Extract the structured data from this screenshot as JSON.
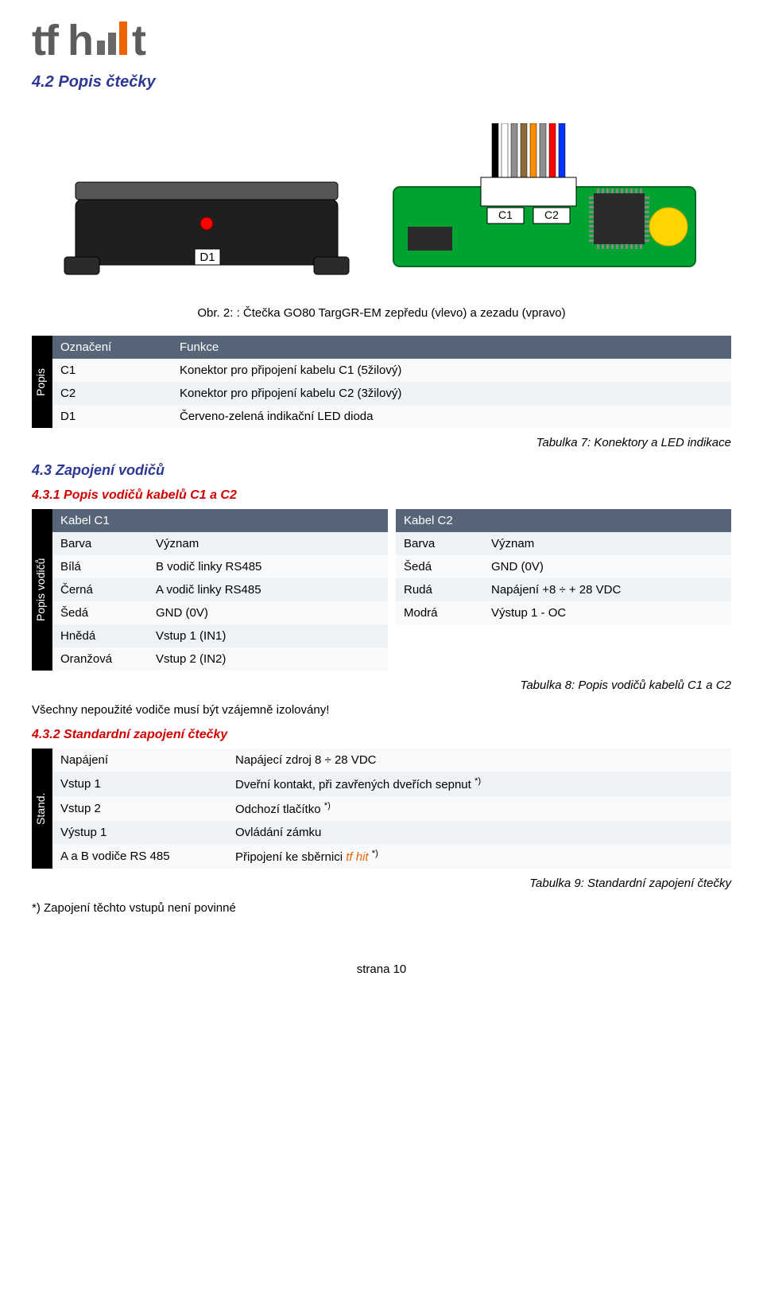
{
  "logo": {
    "t1": "tf h",
    "t2": "t"
  },
  "h2": "4.2 Popis čtečky",
  "front": {
    "d1_label": "D1",
    "case_fill": "#1f1f1f",
    "case_stroke": "#000000",
    "rim_fill": "#575757",
    "led_fill": "#ff0000",
    "label_bg": "#ffffff",
    "foot_fill": "#2b2b2b"
  },
  "back": {
    "c1_label": "C1",
    "c2_label": "C2",
    "pcb_fill": "#00a330",
    "pcb_stroke": "#006b1f",
    "chip_fill": "#2b2b2b",
    "coil_fill": "#ffd400",
    "conn_bg": "#ffffff",
    "wire_colors": [
      "#000000",
      "#ffffff",
      "#8f8f8f",
      "#8e6a3c",
      "#ff8c00",
      "#8f8f8f",
      "#ff0000",
      "#0033ff"
    ]
  },
  "caption": "Obr. 2: : Čtečka GO80 TargGR-EM zepředu (vlevo) a zezadu (vpravo)",
  "side_labels": {
    "popis": "Popis",
    "popis_vodicu": "Popis vodičů",
    "stand": "Stand."
  },
  "table1": {
    "h1": "Označení",
    "h2": "Funkce",
    "rows": [
      [
        "C1",
        "Konektor pro připojení kabelu C1 (5žilový)"
      ],
      [
        "C2",
        "Konektor pro připojení kabelu C2 (3žilový)"
      ],
      [
        "D1",
        "Červeno-zelená indikační LED dioda"
      ]
    ]
  },
  "cap_t7": "Tabulka 7: Konektory a LED indikace",
  "h3": "4.3 Zapojení vodičů",
  "h4_1": "4.3.1   Popis vodičů kabelů C1 a C2",
  "table2_left": {
    "title": "Kabel C1",
    "h1": "Barva",
    "h2": "Význam",
    "rows": [
      [
        "Bílá",
        "B vodič linky RS485"
      ],
      [
        "Černá",
        "A vodič linky RS485"
      ],
      [
        "Šedá",
        "GND (0V)"
      ],
      [
        "Hnědá",
        "Vstup 1 (IN1)"
      ],
      [
        "Oranžová",
        "Vstup 2 (IN2)"
      ]
    ]
  },
  "table2_right": {
    "title": "Kabel C2",
    "h1": "Barva",
    "h2": "Význam",
    "rows": [
      [
        "Šedá",
        "GND (0V)"
      ],
      [
        "Rudá",
        "Napájení +8 ÷ + 28 VDC"
      ],
      [
        "Modrá",
        "Výstup 1 - OC"
      ]
    ]
  },
  "cap_t8": "Tabulka 8: Popis vodičů kabelů C1 a C2",
  "note_iso": "Všechny nepoužité vodiče musí být vzájemně izolovány!",
  "h4_2": "4.3.2   Standardní zapojení čtečky",
  "table3": {
    "rows": [
      {
        "c1": "Napájení",
        "c2": "Napájecí zdroj 8 ÷ 28 VDC",
        "sup": false
      },
      {
        "c1": "Vstup 1",
        "c2": "Dveřní kontakt, při zavřených dveřích sepnut ",
        "sup": true
      },
      {
        "c1": "Vstup 2",
        "c2": "Odchozí tlačítko ",
        "sup": true
      },
      {
        "c1": "Výstup 1",
        "c2": "Ovládání zámku",
        "sup": false
      },
      {
        "c1": "A a B vodiče RS 485",
        "c2_pre": "Připojení ke sběrnici ",
        "orange": "tf hit",
        "c2_post": " ",
        "sup": true
      }
    ],
    "sup_text": "*)"
  },
  "cap_t9": "Tabulka 9: Standardní zapojení čtečky",
  "note_foot": "*) Zapojení těchto vstupů není povinné",
  "footer": "strana 10"
}
